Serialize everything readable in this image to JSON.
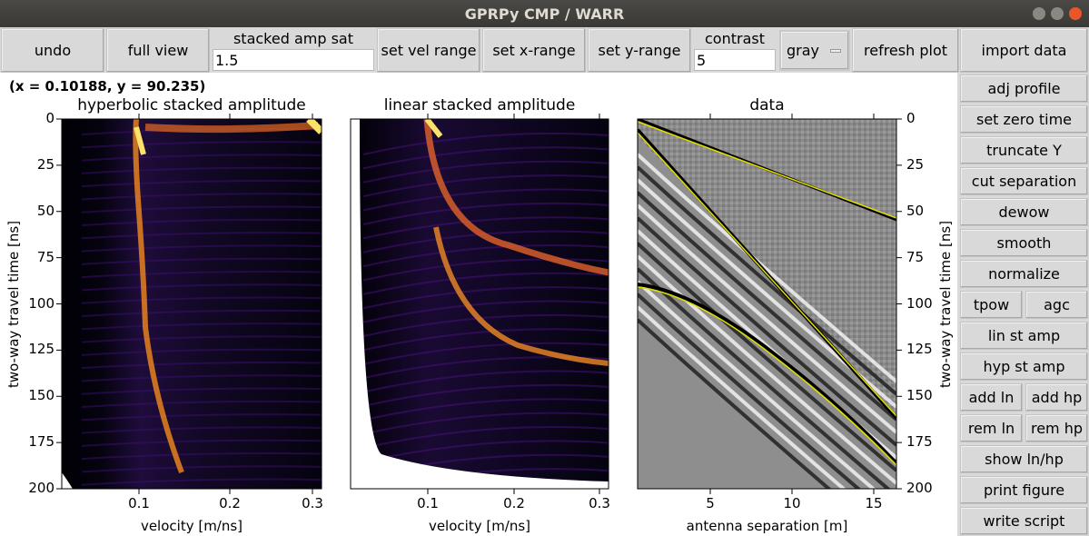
{
  "window": {
    "title": "GPRPy CMP / WARR"
  },
  "toolbar": {
    "undo": "undo",
    "full_view": "full view",
    "stacked_amp_sat_label": "stacked amp sat",
    "stacked_amp_sat_value": "1.5",
    "set_vel_range": "set vel range",
    "set_x_range": "set x-range",
    "set_y_range": "set y-range",
    "contrast_label": "contrast",
    "contrast_value": "5",
    "colormap": "gray",
    "refresh_plot": "refresh plot",
    "import_data": "import data"
  },
  "cursor_readout": "(x = 0.10188, y = 90.235)",
  "sidebar": [
    "adj profile",
    "set zero time",
    "truncate Y",
    "cut separation",
    "dewow",
    "smooth",
    "normalize",
    "tpow",
    "agc",
    "lin st amp",
    "hyp st amp",
    "add ln",
    "add hp",
    "rem ln",
    "rem hp",
    "show ln/hp",
    "print figure",
    "write script"
  ],
  "plots": [
    {
      "title": "hyperbolic stacked amplitude",
      "xlabel": "velocity [m/ns]",
      "ylabel": "two-way travel time [ns]",
      "xticks": [
        "0.1",
        "0.2",
        "0.3"
      ],
      "yticks": [
        "0",
        "25",
        "50",
        "75",
        "100",
        "125",
        "150",
        "175",
        "200"
      ],
      "colormap": "inferno"
    },
    {
      "title": "linear stacked amplitude",
      "xlabel": "velocity [m/ns]",
      "xticks": [
        "0.1",
        "0.2",
        "0.3"
      ],
      "colormap": "inferno"
    },
    {
      "title": "data",
      "xlabel": "antenna separation [m]",
      "ylabel": "two-way travel time [ns]",
      "xticks": [
        "5",
        "10",
        "15"
      ],
      "yticks": [
        "0",
        "25",
        "50",
        "75",
        "100",
        "125",
        "150",
        "175",
        "200"
      ],
      "colormap": "gray",
      "line_color": "#e0e000"
    }
  ]
}
